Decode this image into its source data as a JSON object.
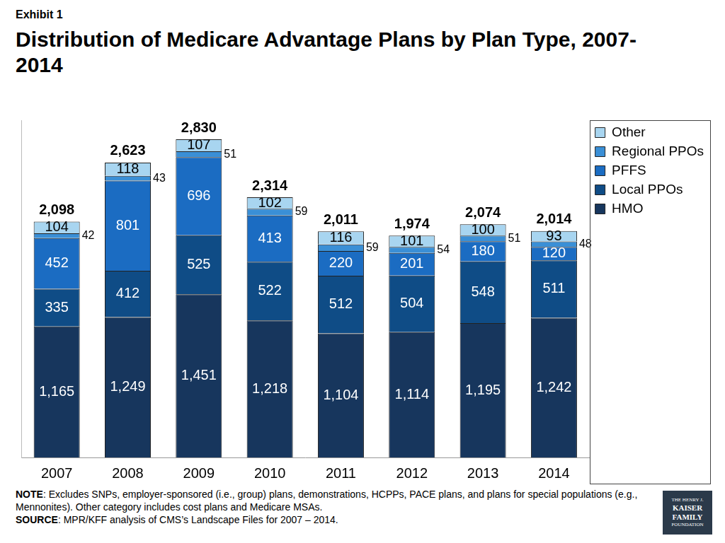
{
  "chart_data": {
    "type": "bar",
    "exhibit": "Exhibit 1",
    "title": "Distribution of Medicare Advantage Plans by Plan Type, 2007-2014",
    "categories": [
      "2007",
      "2008",
      "2009",
      "2010",
      "2011",
      "2012",
      "2013",
      "2014"
    ],
    "series": [
      {
        "name": "HMO",
        "color": "#17365d",
        "values": [
          1165,
          1249,
          1451,
          1218,
          1104,
          1114,
          1195,
          1242
        ],
        "value_labels": [
          "1,165",
          "1,249",
          "1,451",
          "1,218",
          "1,104",
          "1,114",
          "1,195",
          "1,242"
        ]
      },
      {
        "name": "Local PPOs",
        "color": "#0f4c86",
        "values": [
          335,
          412,
          525,
          522,
          512,
          504,
          548,
          511
        ]
      },
      {
        "name": "PFFS",
        "color": "#1b6cc2",
        "values": [
          452,
          801,
          696,
          413,
          220,
          201,
          180,
          120
        ]
      },
      {
        "name": "Regional PPOs",
        "color": "#3a8fd6",
        "values": [
          42,
          43,
          51,
          59,
          59,
          54,
          51,
          48
        ]
      },
      {
        "name": "Other",
        "color": "#a8d5f0",
        "values": [
          104,
          118,
          107,
          102,
          116,
          101,
          100,
          93
        ]
      }
    ],
    "totals": [
      2098,
      2623,
      2830,
      2314,
      2011,
      1974,
      2074,
      2014
    ],
    "total_labels": [
      "2,098",
      "2,623",
      "2,830",
      "2,314",
      "2,011",
      "1,974",
      "2,074",
      "2,014"
    ],
    "ylim": [
      0,
      3000
    ],
    "yticks": [],
    "stacked": true,
    "data_labels": true,
    "grid": false,
    "legend": "upper right",
    "tick_labels": "x"
  },
  "note_label": "NOTE",
  "note": ": Excludes SNPs, employer-sponsored (i.e., group) plans, demonstrations, HCPPs, PACE plans, and plans for special populations (e.g., Mennonites).  Other category includes cost plans and Medicare MSAs.",
  "source_label": "SOURCE",
  "source": ":  MPR/KFF analysis of CMS’s Landscape Files for 2007 – 2014.",
  "logo": [
    "THE HENRY J.",
    "KAISER",
    "FAMILY",
    "FOUNDATION"
  ]
}
